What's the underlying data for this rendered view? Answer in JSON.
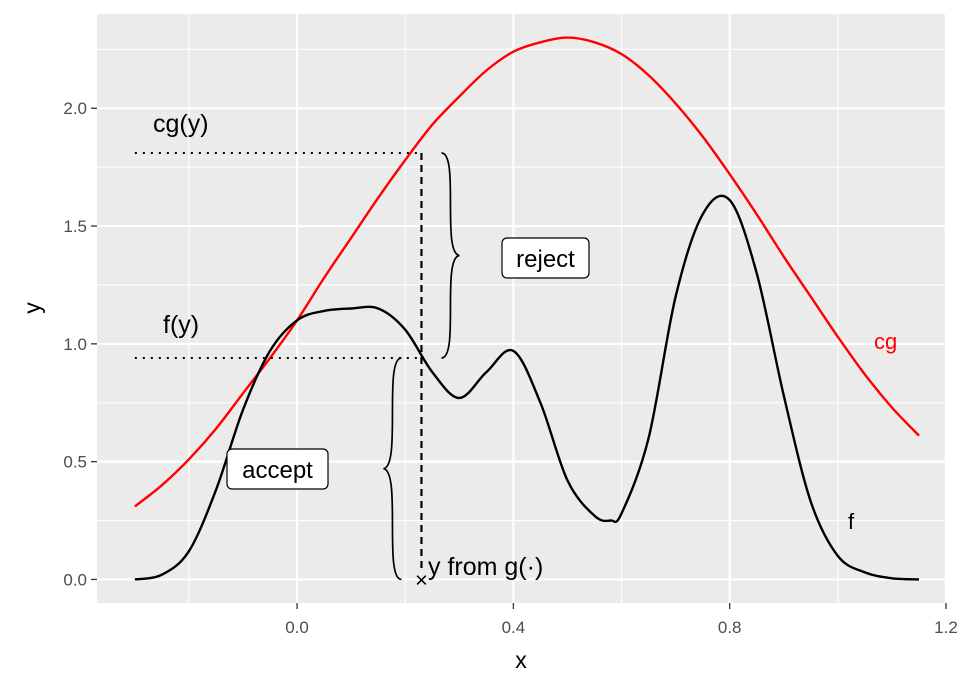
{
  "chart_data": {
    "type": "line",
    "title": "",
    "xlabel": "x",
    "ylabel": "y",
    "xlim": [
      -0.37,
      1.2
    ],
    "ylim": [
      -0.1,
      2.4
    ],
    "x_ticks": [
      0.0,
      0.4,
      0.8,
      1.2
    ],
    "x_tick_labels": [
      "0.0",
      "0.4",
      "0.8",
      "1.2"
    ],
    "y_ticks": [
      0.0,
      0.5,
      1.0,
      1.5,
      2.0
    ],
    "y_tick_labels": [
      "0.0",
      "0.5",
      "1.0",
      "1.5",
      "2.0"
    ],
    "grid": true,
    "legend": "none",
    "colors": {
      "f": "#000000",
      "cg": "#ff0000",
      "panel": "#ebebeb",
      "grid": "#ffffff"
    },
    "series": [
      {
        "name": "f",
        "color": "#000000",
        "x": [
          -0.3,
          -0.25,
          -0.2,
          -0.15,
          -0.1,
          -0.05,
          0.0,
          0.05,
          0.1,
          0.15,
          0.2,
          0.25,
          0.3,
          0.35,
          0.4,
          0.45,
          0.5,
          0.55,
          0.58,
          0.6,
          0.65,
          0.7,
          0.75,
          0.8,
          0.85,
          0.9,
          0.95,
          1.0,
          1.05,
          1.1,
          1.15
        ],
        "y": [
          0.0,
          0.02,
          0.12,
          0.38,
          0.72,
          0.97,
          1.1,
          1.14,
          1.15,
          1.15,
          1.06,
          0.88,
          0.77,
          0.88,
          0.97,
          0.75,
          0.42,
          0.27,
          0.25,
          0.28,
          0.6,
          1.2,
          1.55,
          1.61,
          1.3,
          0.78,
          0.33,
          0.1,
          0.03,
          0.005,
          0.0
        ]
      },
      {
        "name": "cg",
        "color": "#ff0000",
        "x": [
          -0.3,
          -0.25,
          -0.2,
          -0.15,
          -0.1,
          -0.05,
          0.0,
          0.05,
          0.1,
          0.15,
          0.2,
          0.25,
          0.3,
          0.35,
          0.4,
          0.45,
          0.5,
          0.55,
          0.6,
          0.65,
          0.7,
          0.75,
          0.8,
          0.85,
          0.9,
          0.95,
          1.0,
          1.05,
          1.1,
          1.15
        ],
        "y": [
          0.31,
          0.4,
          0.51,
          0.64,
          0.79,
          0.94,
          1.1,
          1.28,
          1.45,
          1.62,
          1.78,
          1.93,
          2.05,
          2.16,
          2.24,
          2.28,
          2.3,
          2.28,
          2.23,
          2.14,
          2.02,
          1.88,
          1.72,
          1.55,
          1.37,
          1.2,
          1.03,
          0.87,
          0.73,
          0.61
        ]
      }
    ],
    "sample_y": 0.23,
    "f_at_y": 0.94,
    "cg_at_y": 1.81,
    "annotations": {
      "cg_y": "cg(y)",
      "f_y": "f(y)",
      "reject": "reject",
      "accept": "accept",
      "sample": "y from g(·)",
      "marker": "×",
      "f_label": "f",
      "cg_label": "cg"
    }
  }
}
